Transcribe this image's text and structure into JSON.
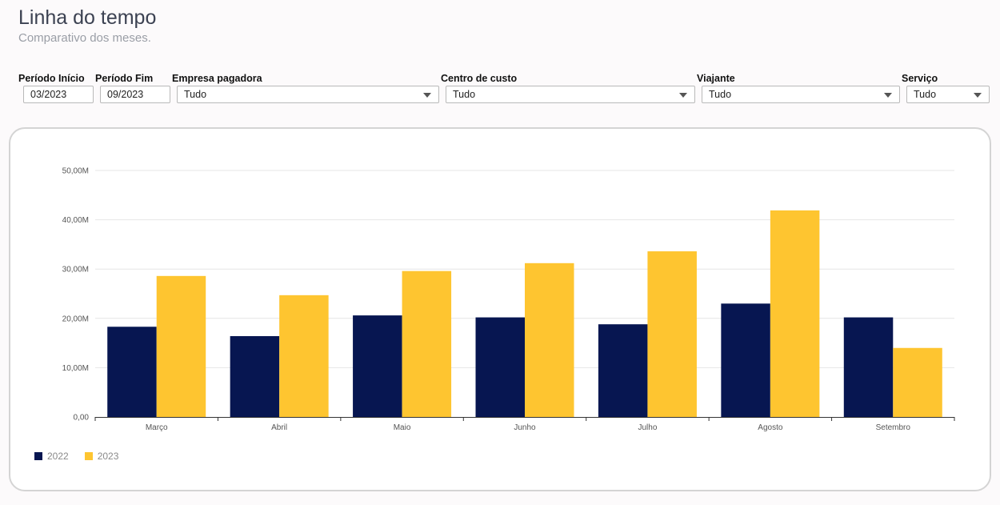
{
  "header": {
    "title": "Linha do tempo",
    "subtitle": "Comparativo dos meses."
  },
  "filters": {
    "period_start": {
      "label": "Período Início",
      "value": "03/2023"
    },
    "period_end": {
      "label": "Período Fim",
      "value": "09/2023"
    },
    "company": {
      "label": "Empresa pagadora",
      "value": "Tudo"
    },
    "cost_center": {
      "label": "Centro de custo",
      "value": "Tudo"
    },
    "traveler": {
      "label": "Viajante",
      "value": "Tudo"
    },
    "service": {
      "label": "Serviço",
      "value": "Tudo"
    }
  },
  "chart_data": {
    "type": "bar",
    "categories": [
      "Março",
      "Abril",
      "Maio",
      "Junho",
      "Julho",
      "Agosto",
      "Setembro"
    ],
    "series": [
      {
        "name": "2022",
        "color": "#071651",
        "values": [
          18.3,
          16.4,
          20.6,
          20.2,
          18.8,
          23.0,
          20.2
        ]
      },
      {
        "name": "2023",
        "color": "#fec530",
        "values": [
          28.6,
          24.7,
          29.6,
          31.2,
          33.6,
          41.9,
          14.0
        ]
      }
    ],
    "yticks": [
      "0,00",
      "10,00M",
      "20,00M",
      "30,00M",
      "40,00M",
      "50,00M"
    ],
    "ylim": [
      0,
      50
    ],
    "grid": true,
    "legend_position": "bottom-left",
    "title": "",
    "xlabel": "",
    "ylabel": ""
  }
}
